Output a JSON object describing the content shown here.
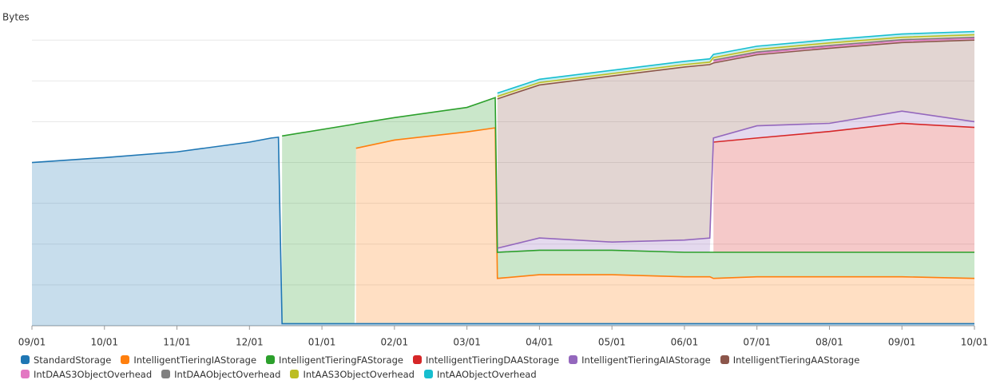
{
  "chart_data": {
    "type": "stacked_area",
    "y_label": "Bytes",
    "x": [
      0,
      1,
      2,
      3,
      3.3,
      3.4,
      3.45,
      4.45,
      4.47,
      5,
      6,
      6.39,
      6.42,
      7,
      8,
      9,
      9.35,
      9.4,
      10,
      11,
      12,
      13
    ],
    "xlim": [
      0,
      13
    ],
    "xticks": [
      {
        "value": 0,
        "label": "09/01"
      },
      {
        "value": 1,
        "label": "10/01"
      },
      {
        "value": 2,
        "label": "11/01"
      },
      {
        "value": 3,
        "label": "12/01"
      },
      {
        "value": 4,
        "label": "01/01"
      },
      {
        "value": 5,
        "label": "02/01"
      },
      {
        "value": 6,
        "label": "03/01"
      },
      {
        "value": 7,
        "label": "04/01"
      },
      {
        "value": 8,
        "label": "05/01"
      },
      {
        "value": 9,
        "label": "06/01"
      },
      {
        "value": 10,
        "label": "07/01"
      },
      {
        "value": 11,
        "label": "08/01"
      },
      {
        "value": 12,
        "label": "09/01"
      },
      {
        "value": 13,
        "label": "10/01"
      }
    ],
    "ylim": [
      0,
      7.2
    ],
    "grid_lines": [
      1,
      2,
      3,
      4,
      5,
      6,
      7
    ],
    "grid": true,
    "series": [
      {
        "name": "StandardStorage",
        "color": "#1f77b4",
        "values": [
          4.0,
          4.12,
          4.26,
          4.5,
          4.6,
          4.62,
          0.05,
          0.05,
          0.05,
          0.05,
          0.05,
          0.05,
          0.05,
          0.05,
          0.05,
          0.05,
          0.05,
          0.05,
          0.05,
          0.05,
          0.05,
          0.05
        ]
      },
      {
        "name": "IntelligentTieringIAStorage",
        "color": "#ff7f0e",
        "values": [
          null,
          null,
          null,
          null,
          null,
          null,
          null,
          null,
          4.3,
          4.5,
          4.7,
          4.8,
          1.11,
          1.2,
          1.2,
          1.15,
          1.15,
          1.11,
          1.15,
          1.15,
          1.15,
          1.11
        ]
      },
      {
        "name": "IntelligentTieringFAStorage",
        "color": "#2ca02c",
        "values": [
          null,
          null,
          null,
          null,
          null,
          null,
          4.6,
          4.89,
          0.6,
          0.55,
          0.6,
          0.74,
          0.64,
          0.6,
          0.6,
          0.6,
          0.6,
          0.64,
          0.6,
          0.6,
          0.6,
          0.64
        ]
      },
      {
        "name": "IntelligentTieringDAAStorage",
        "color": "#d62728",
        "values": [
          null,
          null,
          null,
          null,
          null,
          null,
          null,
          null,
          null,
          null,
          null,
          null,
          null,
          null,
          null,
          null,
          null,
          2.7,
          2.8,
          2.96,
          3.16,
          3.06
        ]
      },
      {
        "name": "IntelligentTieringAIAStorage",
        "color": "#9467bd",
        "values": [
          null,
          null,
          null,
          null,
          null,
          null,
          null,
          null,
          null,
          null,
          null,
          null,
          0.1,
          0.3,
          0.2,
          0.3,
          0.35,
          0.1,
          0.3,
          0.2,
          0.3,
          0.14
        ]
      },
      {
        "name": "IntelligentTieringAAStorage",
        "color": "#8c564b",
        "values": [
          null,
          null,
          null,
          null,
          null,
          null,
          null,
          null,
          null,
          null,
          null,
          null,
          3.66,
          3.75,
          4.07,
          4.24,
          4.25,
          1.84,
          1.74,
          1.84,
          1.68,
          2.0
        ]
      },
      {
        "name": "IntDAAS3ObjectOverhead",
        "color": "#e377c2",
        "values": [
          null,
          null,
          null,
          null,
          null,
          null,
          null,
          null,
          null,
          null,
          null,
          null,
          null,
          null,
          null,
          null,
          null,
          0.04,
          0.04,
          0.04,
          0.04,
          0.04
        ]
      },
      {
        "name": "IntDAAObjectOverhead",
        "color": "#7f7f7f",
        "values": [
          null,
          null,
          null,
          null,
          null,
          null,
          null,
          null,
          null,
          null,
          null,
          null,
          null,
          null,
          null,
          null,
          null,
          0.03,
          0.03,
          0.03,
          0.03,
          0.03
        ]
      },
      {
        "name": "IntAAS3ObjectOverhead",
        "color": "#bcbd22",
        "values": [
          null,
          null,
          null,
          null,
          null,
          null,
          null,
          null,
          null,
          null,
          null,
          null,
          0.06,
          0.06,
          0.06,
          0.06,
          0.06,
          0.06,
          0.06,
          0.06,
          0.06,
          0.06
        ]
      },
      {
        "name": "IntAAObjectOverhead",
        "color": "#17becf",
        "values": [
          null,
          null,
          null,
          null,
          null,
          null,
          null,
          null,
          null,
          null,
          null,
          null,
          0.08,
          0.08,
          0.08,
          0.08,
          0.08,
          0.08,
          0.08,
          0.08,
          0.08,
          0.08
        ]
      }
    ]
  }
}
